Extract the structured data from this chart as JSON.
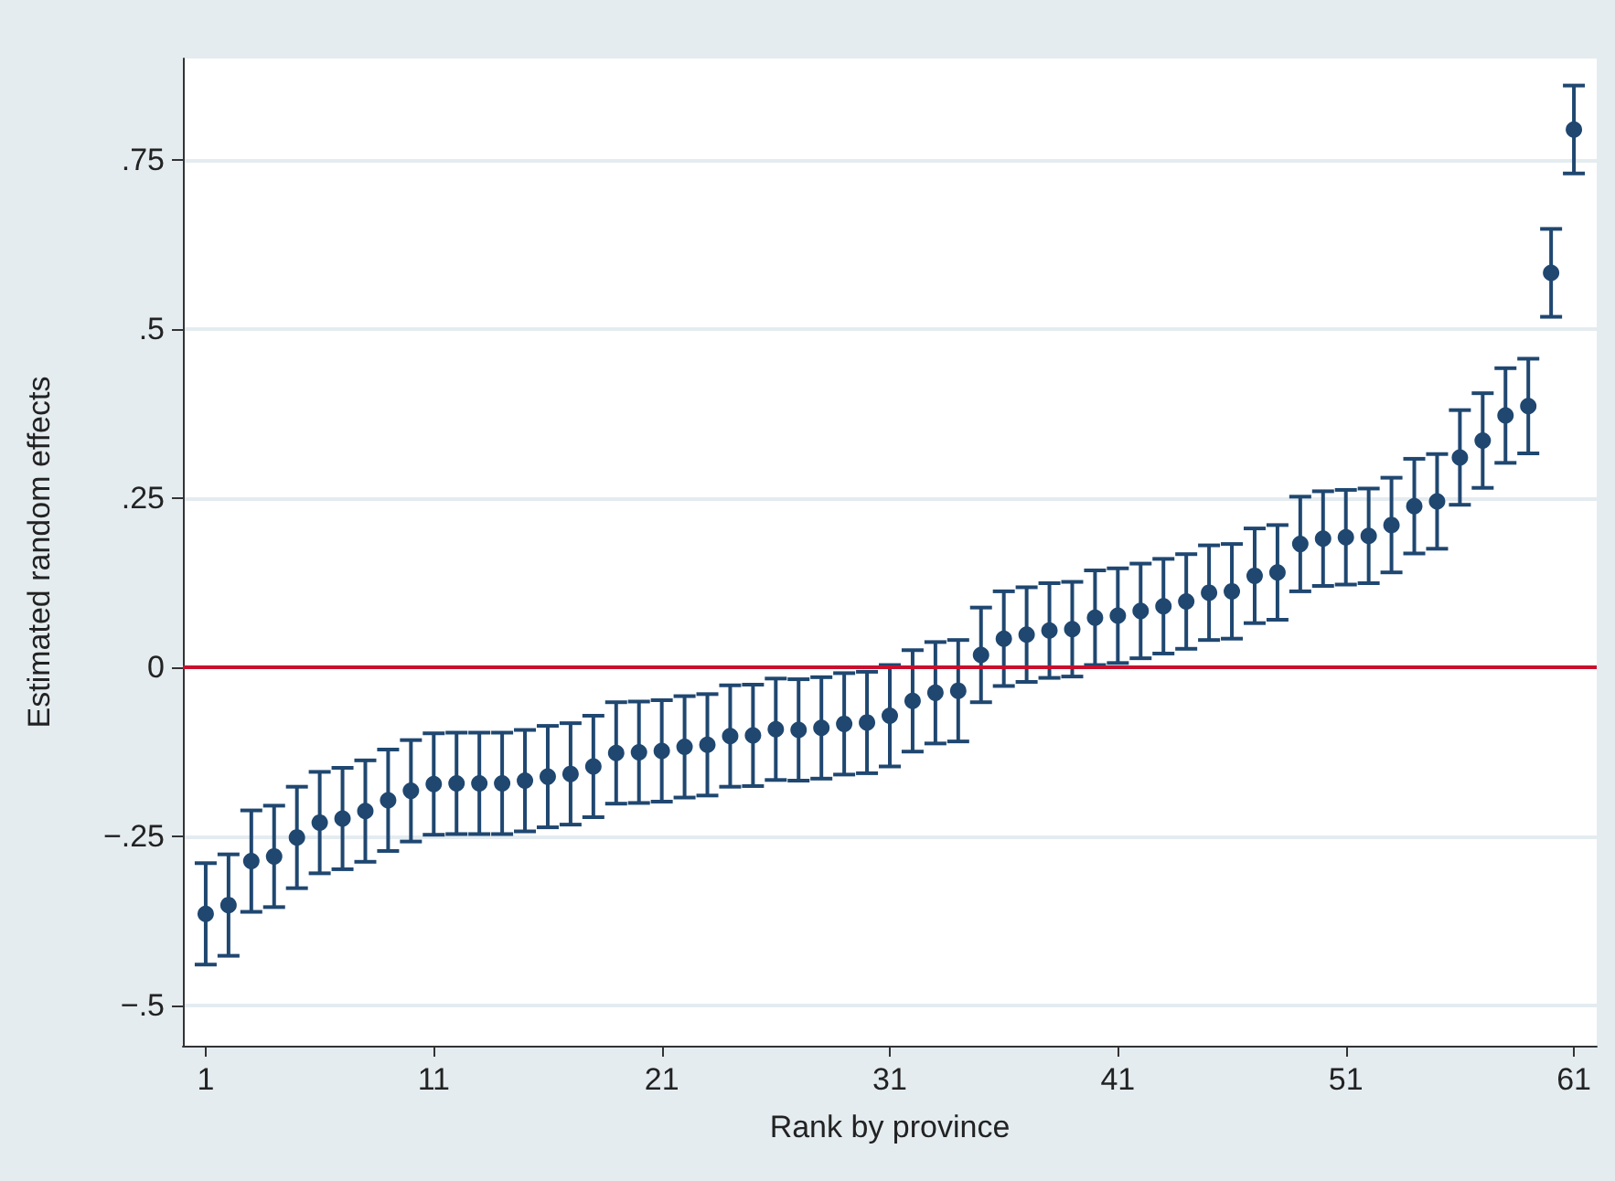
{
  "chart_data": {
    "type": "scatter",
    "xlabel": "Rank by province",
    "ylabel": "Estimated random effects",
    "x": [
      1,
      2,
      3,
      4,
      5,
      6,
      7,
      8,
      9,
      10,
      11,
      12,
      13,
      14,
      15,
      16,
      17,
      18,
      19,
      20,
      21,
      22,
      23,
      24,
      25,
      26,
      27,
      28,
      29,
      30,
      31,
      32,
      33,
      34,
      35,
      36,
      37,
      38,
      39,
      40,
      41,
      42,
      43,
      44,
      45,
      46,
      47,
      48,
      49,
      50,
      51,
      52,
      53,
      54,
      55,
      56,
      57,
      58,
      59,
      60,
      61
    ],
    "series": [
      {
        "color": "#1f4770",
        "values": [
          -0.365,
          -0.352,
          -0.287,
          -0.28,
          -0.252,
          -0.23,
          -0.224,
          -0.213,
          -0.197,
          -0.183,
          -0.173,
          -0.172,
          -0.172,
          -0.172,
          -0.168,
          -0.162,
          -0.158,
          -0.147,
          -0.127,
          -0.126,
          -0.124,
          -0.118,
          -0.115,
          -0.102,
          -0.101,
          -0.092,
          -0.093,
          -0.09,
          -0.084,
          -0.082,
          -0.072,
          -0.05,
          -0.038,
          -0.035,
          0.018,
          0.042,
          0.048,
          0.054,
          0.056,
          0.073,
          0.076,
          0.083,
          0.09,
          0.097,
          0.11,
          0.112,
          0.135,
          0.14,
          0.182,
          0.19,
          0.192,
          0.194,
          0.21,
          0.238,
          0.245,
          0.31,
          0.335,
          0.372,
          0.386,
          0.583,
          0.795
        ],
        "errors": [
          0.075,
          0.075,
          0.075,
          0.075,
          0.075,
          0.075,
          0.075,
          0.075,
          0.075,
          0.075,
          0.075,
          0.075,
          0.075,
          0.075,
          0.075,
          0.075,
          0.075,
          0.075,
          0.075,
          0.075,
          0.075,
          0.075,
          0.075,
          0.075,
          0.075,
          0.075,
          0.075,
          0.075,
          0.075,
          0.075,
          0.075,
          0.075,
          0.075,
          0.075,
          0.07,
          0.07,
          0.07,
          0.07,
          0.07,
          0.07,
          0.07,
          0.07,
          0.07,
          0.07,
          0.07,
          0.07,
          0.07,
          0.07,
          0.07,
          0.07,
          0.07,
          0.07,
          0.07,
          0.07,
          0.07,
          0.07,
          0.07,
          0.07,
          0.07,
          0.065,
          0.065
        ]
      }
    ],
    "xlim": [
      0,
      62
    ],
    "xticks": [
      1,
      11,
      21,
      31,
      41,
      51,
      61
    ],
    "ylim": [
      -0.56,
      0.9
    ],
    "yticks": [
      {
        "value": -0.5,
        "label": "−.5"
      },
      {
        "value": -0.25,
        "label": "−.25"
      },
      {
        "value": 0,
        "label": "0"
      },
      {
        "value": 0.25,
        "label": ".25"
      },
      {
        "value": 0.5,
        "label": ".5"
      },
      {
        "value": 0.75,
        "label": ".75"
      }
    ],
    "grid": "y",
    "marker": "circle",
    "ref_lines": [
      {
        "axis": "y",
        "value": 0,
        "color": "#c8102e"
      }
    ]
  }
}
